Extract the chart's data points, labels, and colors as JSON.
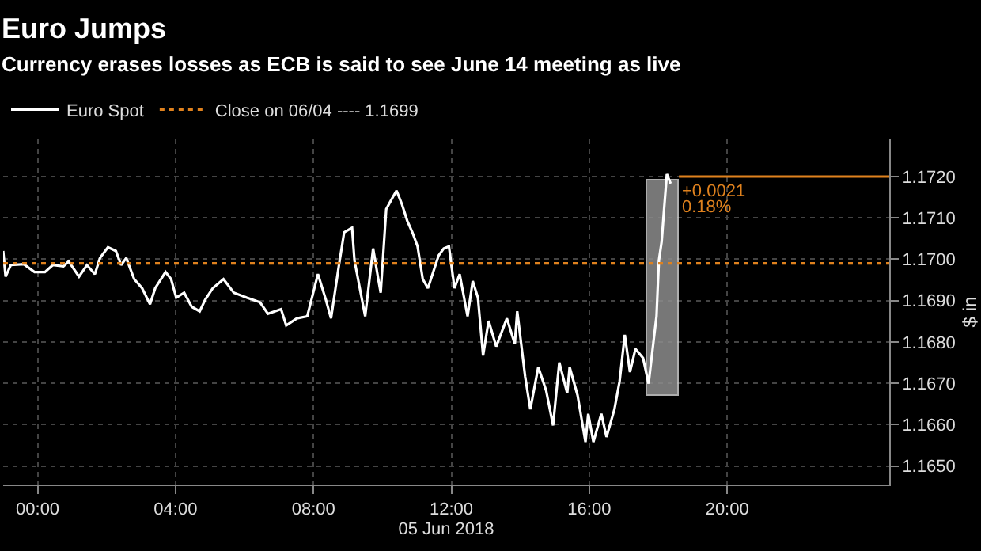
{
  "chart_data": {
    "type": "line",
    "title": "Euro Jumps",
    "subtitle": "Currency erases losses as ECB is said to see June 14 meeting as live",
    "xlabel": "05 Jun 2018",
    "ylabel": "$ in",
    "xlim": [
      -1.0,
      24.7
    ],
    "xticks": [
      {
        "value": 0,
        "label": "00:00"
      },
      {
        "value": 4,
        "label": "04:00"
      },
      {
        "value": 8,
        "label": "08:00"
      },
      {
        "value": 12,
        "label": "12:00"
      },
      {
        "value": 16,
        "label": "16:00"
      },
      {
        "value": 20,
        "label": "20:00"
      }
    ],
    "ylim": [
      1.16455,
      1.1729
    ],
    "yticks": [
      {
        "value": 1.165,
        "label": "1.1650"
      },
      {
        "value": 1.166,
        "label": "1.1660"
      },
      {
        "value": 1.167,
        "label": "1.1670"
      },
      {
        "value": 1.168,
        "label": "1.1680"
      },
      {
        "value": 1.169,
        "label": "1.1690"
      },
      {
        "value": 1.17,
        "label": "1.1700"
      },
      {
        "value": 1.171,
        "label": "1.1710"
      },
      {
        "value": 1.172,
        "label": "1.1720"
      }
    ],
    "grid": true,
    "legend": "top left",
    "marker": "none",
    "series": [
      {
        "name": "Euro Spot",
        "color": "#ffffff",
        "line_style": "solid",
        "x": [
          -1.0,
          -0.93,
          -0.78,
          -0.4,
          -0.09,
          0.21,
          0.44,
          0.75,
          0.9,
          1.2,
          1.43,
          1.66,
          1.81,
          2.04,
          2.27,
          2.42,
          2.57,
          2.8,
          3.03,
          3.26,
          3.41,
          3.71,
          3.87,
          4.02,
          4.25,
          4.47,
          4.7,
          4.86,
          5.08,
          5.39,
          5.69,
          6.07,
          6.45,
          6.68,
          7.06,
          7.21,
          7.52,
          7.82,
          8.13,
          8.36,
          8.51,
          8.74,
          8.89,
          9.12,
          9.19,
          9.5,
          9.73,
          9.88,
          9.95,
          10.11,
          10.26,
          10.41,
          10.57,
          10.72,
          10.87,
          11.02,
          11.17,
          11.32,
          11.63,
          11.78,
          11.93,
          12.09,
          12.24,
          12.47,
          12.62,
          12.77,
          12.92,
          13.08,
          13.3,
          13.61,
          13.84,
          13.91,
          14.14,
          14.29,
          14.52,
          14.75,
          14.95,
          15.13,
          15.36,
          15.43,
          15.66,
          15.89,
          15.97,
          16.12,
          16.35,
          16.5,
          16.73,
          16.88,
          17.03,
          17.18,
          17.34,
          17.56,
          17.72,
          17.87,
          17.95,
          18.02,
          18.1,
          18.17,
          18.25,
          18.36
        ],
        "values": [
          1.1702,
          1.16958,
          1.16986,
          1.16988,
          1.16969,
          1.16969,
          1.16986,
          1.16983,
          1.16995,
          1.16958,
          1.16986,
          1.16964,
          1.17003,
          1.17029,
          1.1702,
          1.16986,
          1.17003,
          1.16952,
          1.1693,
          1.16891,
          1.1693,
          1.16969,
          1.16952,
          1.16907,
          1.16919,
          1.16885,
          1.16874,
          1.16902,
          1.1693,
          1.16952,
          1.16919,
          1.16907,
          1.16896,
          1.16868,
          1.16879,
          1.1684,
          1.16857,
          1.16862,
          1.16964,
          1.16902,
          1.16857,
          1.16986,
          1.17065,
          1.17076,
          1.16997,
          1.16862,
          1.17026,
          1.16952,
          1.16919,
          1.17121,
          1.17144,
          1.17166,
          1.17132,
          1.17093,
          1.17065,
          1.17031,
          1.16952,
          1.1693,
          1.17009,
          1.17026,
          1.17031,
          1.1693,
          1.16964,
          1.16862,
          1.16947,
          1.16907,
          1.16767,
          1.16851,
          1.16789,
          1.16857,
          1.16795,
          1.16874,
          1.16716,
          1.16637,
          1.16739,
          1.16682,
          1.16598,
          1.1675,
          1.16676,
          1.16739,
          1.16671,
          1.16558,
          1.16626,
          1.16558,
          1.16626,
          1.1657,
          1.16637,
          1.16705,
          1.16817,
          1.16727,
          1.16783,
          1.16761,
          1.16699,
          1.16806,
          1.16862,
          1.16997,
          1.17043,
          1.17121,
          1.17206,
          1.17183
        ]
      },
      {
        "name": "Close on 06/04 ---- 1.1699",
        "color": "#e0821e",
        "line_style": "dotted",
        "x": [
          -1.0,
          24.7
        ],
        "values": [
          1.1699,
          1.1699
        ]
      },
      {
        "color": "#e0821e",
        "line_style": "solid",
        "x": [
          18.6,
          24.7
        ],
        "values": [
          1.172,
          1.172
        ]
      },
      {
        "type": "bar",
        "color": "#8c8c8c",
        "x": [
          18.13
        ],
        "base": [
          1.1667
        ],
        "values": [
          0.0052
        ]
      }
    ],
    "annotations": [
      {
        "text": "+0.0021",
        "x": 18.6,
        "y": 1.17165
      },
      {
        "text": "0.18%",
        "x": 18.6,
        "y": 1.17125
      }
    ]
  }
}
